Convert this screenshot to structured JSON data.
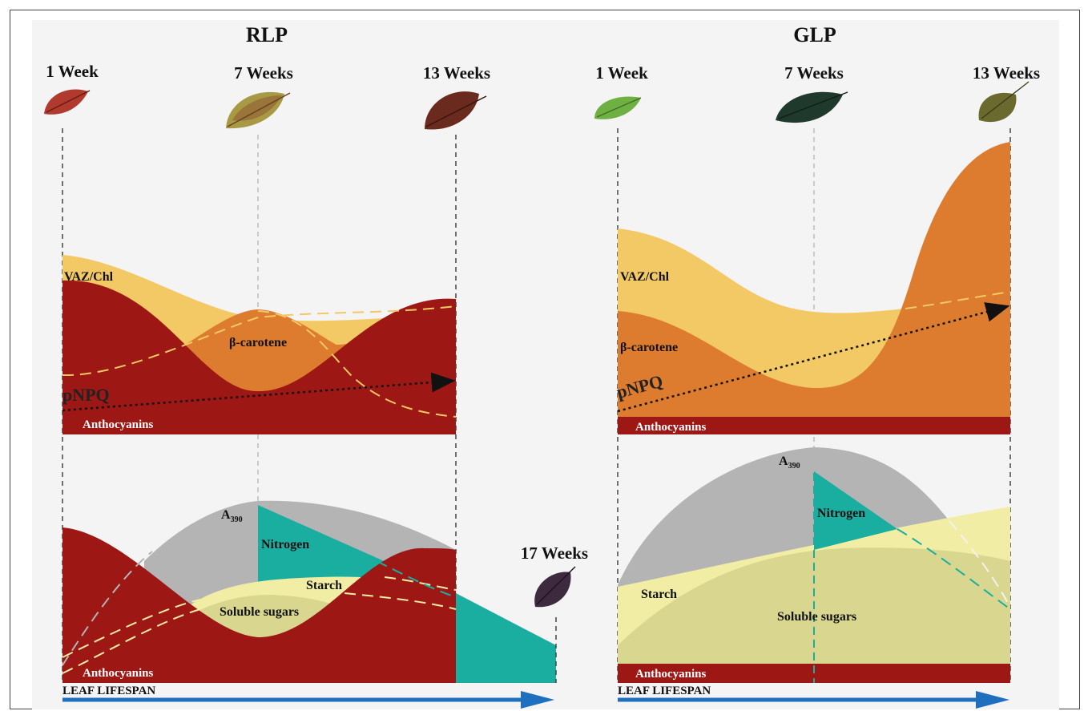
{
  "panels": {
    "left": {
      "title": "RLP",
      "weeks": [
        "1 Week",
        "7 Weeks",
        "13 Weeks"
      ],
      "extra_week": "17 Weeks",
      "top_labels": {
        "vaz": "VAZ/Chl",
        "carotene": "β-carotene",
        "pnpq": "pNPQ",
        "anthocyanins": "Anthocyanins"
      },
      "bottom_labels": {
        "a390": "A",
        "a390_sub": "390",
        "nitrogen": "Nitrogen",
        "starch": "Starch",
        "sugars": "Soluble sugars",
        "anthocyanins": "Anthocyanins"
      },
      "lifespan": "LEAF LIFESPAN"
    },
    "right": {
      "title": "GLP",
      "weeks": [
        "1 Week",
        "7 Weeks",
        "13 Weeks"
      ],
      "top_labels": {
        "vaz": "VAZ/Chl",
        "carotene": "β-carotene",
        "pnpq": "pNPQ",
        "anthocyanins": "Anthocyanins"
      },
      "bottom_labels": {
        "a390": "A",
        "a390_sub": "390",
        "nitrogen": "Nitrogen",
        "starch": "Starch",
        "sugars": "Soluble sugars",
        "anthocyanins": "Anthocyanins"
      },
      "lifespan": "LEAF LIFESPAN"
    }
  },
  "colors": {
    "vaz": "#f2c965",
    "carotene": "#dd7c2e",
    "anthocyanin": "#9d1714",
    "gray": "#b4b4b4",
    "nitrogen": "#1aaea0",
    "starch": "#f2eda4",
    "sugars": "#d9d78f",
    "arrow": "#1f6fbf"
  },
  "leaf_icons": [
    "leaf-red",
    "leaf-yellow-green",
    "leaf-dark-red",
    "leaf-purple",
    "leaf-light-green",
    "leaf-dark-green",
    "leaf-olive"
  ]
}
